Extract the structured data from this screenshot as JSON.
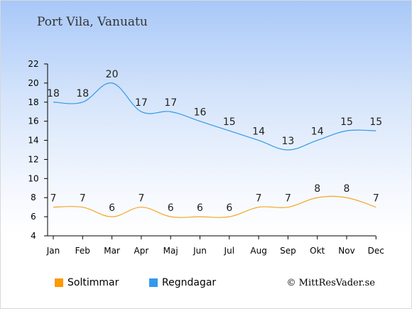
{
  "chart_data": {
    "type": "line",
    "title": "Port Vila, Vanuatu",
    "categories": [
      "Jan",
      "Feb",
      "Mar",
      "Apr",
      "Maj",
      "Jun",
      "Jul",
      "Aug",
      "Sep",
      "Okt",
      "Nov",
      "Dec"
    ],
    "ylim": [
      4,
      22
    ],
    "yticks": [
      "4",
      "6",
      "8",
      "10",
      "12",
      "14",
      "16",
      "18",
      "20",
      "22"
    ],
    "series": [
      {
        "name": "Regndagar",
        "color": "#3399e6",
        "values": [
          18,
          18,
          20,
          17,
          17,
          16,
          15,
          14,
          13,
          14,
          15,
          15
        ]
      },
      {
        "name": "Soltimmar",
        "color": "#f5a623",
        "values": [
          7,
          7,
          6,
          7,
          6,
          6,
          6,
          7,
          7,
          8,
          8,
          7
        ]
      }
    ]
  },
  "legend": {
    "items": [
      {
        "label": "Soltimmar",
        "color": "#ff9900"
      },
      {
        "label": "Regndagar",
        "color": "#3399ee"
      }
    ]
  },
  "credit": "© MittResVader.se"
}
